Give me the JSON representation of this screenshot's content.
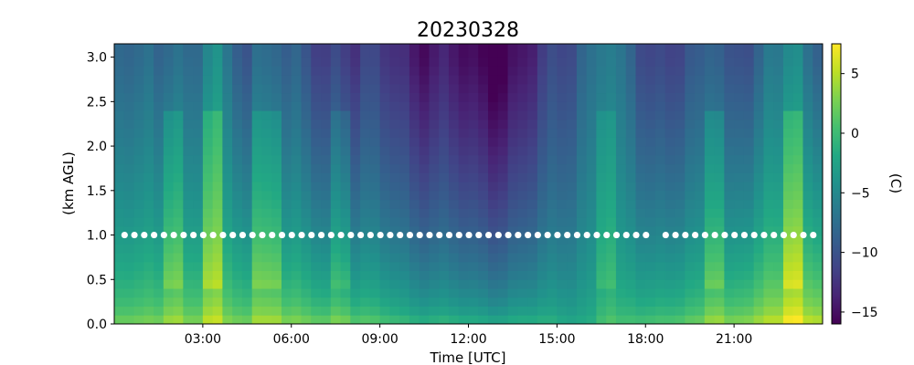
{
  "chart_data": {
    "type": "heatmap",
    "title": "20230328",
    "xlabel": "Time [UTC]",
    "ylabel": "(km AGL)",
    "colorbar_label": "(C)",
    "colormap": "viridis",
    "x_range_hours": [
      0,
      24
    ],
    "ylim": [
      0,
      3.15
    ],
    "x_ticks": [
      {
        "hour": 3,
        "label": "03:00"
      },
      {
        "hour": 6,
        "label": "06:00"
      },
      {
        "hour": 9,
        "label": "09:00"
      },
      {
        "hour": 12,
        "label": "12:00"
      },
      {
        "hour": 15,
        "label": "15:00"
      },
      {
        "hour": 18,
        "label": "18:00"
      },
      {
        "hour": 21,
        "label": "21:00"
      }
    ],
    "y_ticks": [
      {
        "value": 0.0,
        "label": "0.0"
      },
      {
        "value": 0.5,
        "label": "0.5"
      },
      {
        "value": 1.0,
        "label": "1.0"
      },
      {
        "value": 1.5,
        "label": "1.5"
      },
      {
        "value": 2.0,
        "label": "2.0"
      },
      {
        "value": 2.5,
        "label": "2.5"
      },
      {
        "value": 3.0,
        "label": "3.0"
      }
    ],
    "colorbar_range": [
      -16,
      7.5
    ],
    "colorbar_ticks": [
      {
        "value": 5,
        "label": "5"
      },
      {
        "value": 0,
        "label": "0"
      },
      {
        "value": -5,
        "label": "−5"
      },
      {
        "value": -10,
        "label": "−10"
      },
      {
        "value": -15,
        "label": "−15"
      }
    ],
    "marker_series": {
      "y": 1.0,
      "color": "#ffffff",
      "interval_minutes": 20,
      "start_hour": 0.35,
      "end_hour": 23.85,
      "gaps_hours": [
        [
          18.1,
          18.6
        ]
      ]
    },
    "heatmap": {
      "x_step_minutes": 20,
      "y_levels_km": [
        0.0,
        0.1,
        0.2,
        0.3,
        0.4,
        0.5,
        0.6,
        0.7,
        0.8,
        0.9,
        1.0,
        1.1,
        1.2,
        1.3,
        1.4,
        1.5,
        1.6,
        1.7,
        1.8,
        1.9,
        2.0,
        2.1,
        2.2,
        2.3,
        2.4,
        2.5,
        2.6,
        2.7,
        2.8,
        2.9,
        3.0,
        3.1
      ],
      "surface_temp_by_hour": [
        [
          0,
          3
        ],
        [
          2,
          4
        ],
        [
          4,
          4
        ],
        [
          6,
          4
        ],
        [
          8,
          3
        ],
        [
          10,
          1
        ],
        [
          12,
          0
        ],
        [
          14,
          0
        ],
        [
          16,
          -1
        ],
        [
          18,
          2
        ],
        [
          20,
          3
        ],
        [
          22,
          6
        ],
        [
          24,
          7
        ]
      ],
      "temp_3km_by_hour": [
        [
          0,
          -9
        ],
        [
          2,
          -8
        ],
        [
          4,
          -8
        ],
        [
          6,
          -10
        ],
        [
          8,
          -12
        ],
        [
          10,
          -13
        ],
        [
          12,
          -16
        ],
        [
          14,
          -15
        ],
        [
          16,
          -7
        ],
        [
          18,
          -10
        ],
        [
          20,
          -11
        ],
        [
          22,
          -8
        ],
        [
          24,
          -7
        ]
      ],
      "warm_columns": [
        {
          "start_hour": 1.7,
          "end_hour": 2.3,
          "anomaly": 4
        },
        {
          "start_hour": 3.0,
          "end_hour": 3.6,
          "anomaly": 5
        },
        {
          "start_hour": 4.8,
          "end_hour": 5.6,
          "anomaly": 4
        },
        {
          "start_hour": 7.3,
          "end_hour": 7.9,
          "anomaly": 3
        },
        {
          "start_hour": 16.4,
          "end_hour": 16.9,
          "anomaly": 3
        },
        {
          "start_hour": 20.0,
          "end_hour": 20.5,
          "anomaly": 4
        },
        {
          "start_hour": 22.5,
          "end_hour": 23.4,
          "anomaly": 5
        }
      ]
    }
  }
}
